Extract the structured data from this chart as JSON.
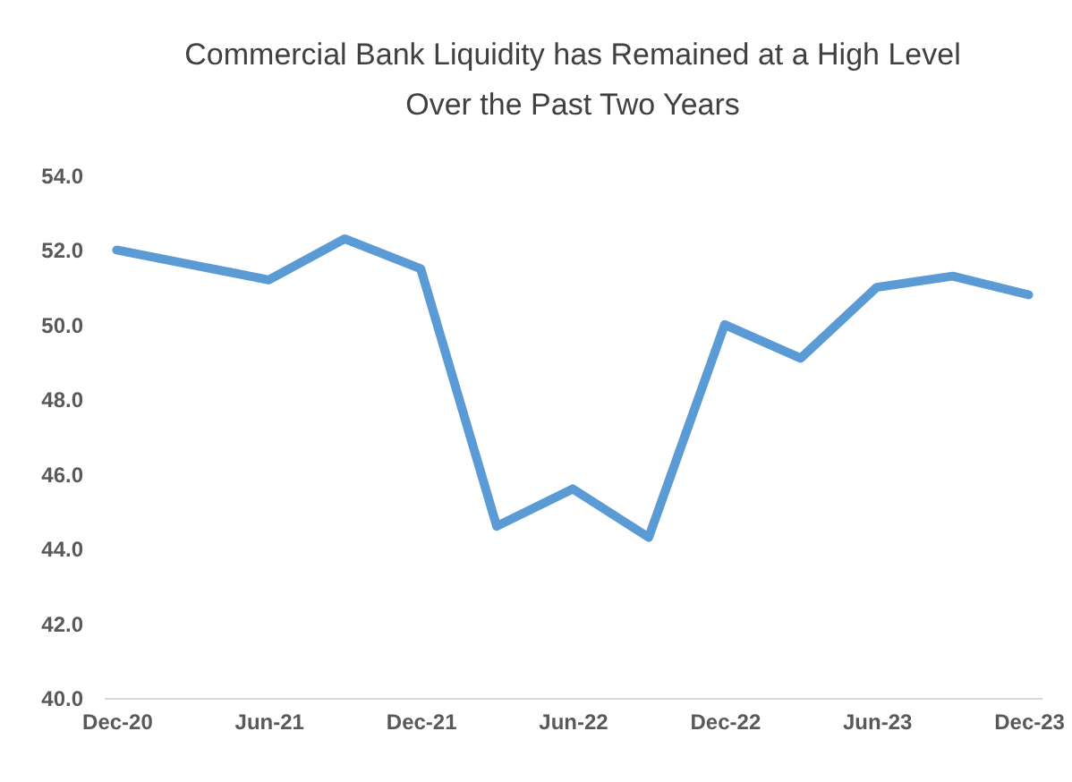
{
  "chart_data": {
    "type": "line",
    "title": "Commercial Bank Liquidity has Remained at a High Level Over the Past Two Years",
    "categories": [
      "Dec-20",
      null,
      "Jun-21",
      null,
      "Dec-21",
      null,
      "Jun-22",
      null,
      "Dec-22",
      null,
      "Jun-23",
      null,
      "Dec-23"
    ],
    "series": [
      {
        "color": "#5b9bd5",
        "values": [
          52.0,
          51.6,
          51.2,
          52.3,
          51.5,
          44.6,
          45.6,
          44.3,
          50.0,
          49.1,
          51.0,
          51.3,
          50.8
        ]
      }
    ],
    "ylim": [
      40,
      54
    ],
    "yticks": [
      {
        "value": 40,
        "label": "40.0"
      },
      {
        "value": 42,
        "label": "42.0"
      },
      {
        "value": 44,
        "label": "44.0"
      },
      {
        "value": 46,
        "label": "46.0"
      },
      {
        "value": 48,
        "label": "48.0"
      },
      {
        "value": 50,
        "label": "50.0"
      },
      {
        "value": 52,
        "label": "52.0"
      },
      {
        "value": 54,
        "label": "54.0"
      }
    ],
    "grid": false,
    "legend": false,
    "marker": "none",
    "line_style": "solid"
  }
}
